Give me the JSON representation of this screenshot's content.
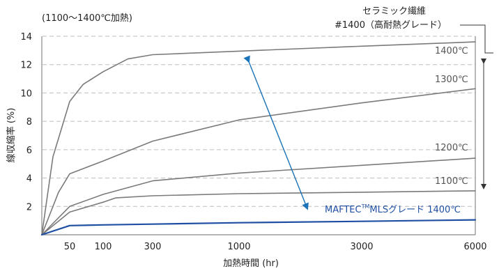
{
  "chart_data": {
    "type": "line",
    "subtitle": "(1100〜1400℃加熱)",
    "xlabel": "加熱時間 (hr)",
    "ylabel": "線収縮率 (%)",
    "ylim": [
      0,
      14
    ],
    "yticks": [
      2,
      4,
      6,
      8,
      10,
      12,
      14
    ],
    "xticks": [
      50,
      100,
      300,
      1000,
      3000,
      6000
    ],
    "x_scale": "nonlinear (compressed)",
    "grid": true,
    "grid_style": "dashed horizontal",
    "annotation_top_line1": "セラミック繊維",
    "annotation_top_line2": "#1400（高耐熱グレード）",
    "series": [
      {
        "name": "1400℃",
        "group": "セラミック繊維 #1400（高耐熱グレード）",
        "color": "#7a7a7a",
        "points": [
          [
            0,
            0
          ],
          [
            20,
            5.5
          ],
          [
            50,
            9.4
          ],
          [
            70,
            10.6
          ],
          [
            100,
            11.5
          ],
          [
            200,
            12.4
          ],
          [
            300,
            12.7
          ],
          [
            1000,
            12.95
          ],
          [
            3000,
            13.3
          ],
          [
            6000,
            13.6
          ]
        ]
      },
      {
        "name": "1300℃",
        "group": "セラミック繊維 #1400（高耐熱グレード）",
        "color": "#7a7a7a",
        "points": [
          [
            0,
            0
          ],
          [
            30,
            3.0
          ],
          [
            50,
            4.3
          ],
          [
            100,
            5.2
          ],
          [
            300,
            6.6
          ],
          [
            1000,
            8.1
          ],
          [
            3000,
            9.3
          ],
          [
            6000,
            10.3
          ]
        ]
      },
      {
        "name": "1200℃",
        "group": "セラミック繊維 #1400（高耐熱グレード）",
        "color": "#7a7a7a",
        "points": [
          [
            0,
            0
          ],
          [
            50,
            2.0
          ],
          [
            100,
            2.85
          ],
          [
            300,
            3.8
          ],
          [
            1000,
            4.35
          ],
          [
            3000,
            4.9
          ],
          [
            6000,
            5.4
          ]
        ]
      },
      {
        "name": "1100℃",
        "group": "セラミック繊維 #1400（高耐熱グレード）",
        "color": "#7a7a7a",
        "points": [
          [
            0,
            0
          ],
          [
            50,
            1.6
          ],
          [
            100,
            2.3
          ],
          [
            150,
            2.6
          ],
          [
            300,
            2.75
          ],
          [
            1000,
            2.9
          ],
          [
            3000,
            3.0
          ],
          [
            6000,
            3.1
          ]
        ]
      },
      {
        "name": "MAFTEC™MLSグレード 1400℃",
        "color": "#1f4fa3",
        "points": [
          [
            0,
            0
          ],
          [
            50,
            0.65
          ],
          [
            100,
            0.7
          ],
          [
            300,
            0.75
          ],
          [
            1000,
            0.85
          ],
          [
            3000,
            0.95
          ],
          [
            6000,
            1.05
          ]
        ]
      }
    ],
    "label_1400": "1400℃",
    "label_1300": "1300℃",
    "label_1200": "1200℃",
    "label_1100": "1100℃",
    "label_mls_prefix": "MAFTEC",
    "label_mls_tm": "TM",
    "label_mls_suffix": "MLSグレード 1400℃",
    "colors": {
      "ceramic_series": "#7a7a7a",
      "mls_series": "#1f4fa3",
      "comparison_arrow": "#1a73b8",
      "range_arrow": "#333333"
    }
  }
}
